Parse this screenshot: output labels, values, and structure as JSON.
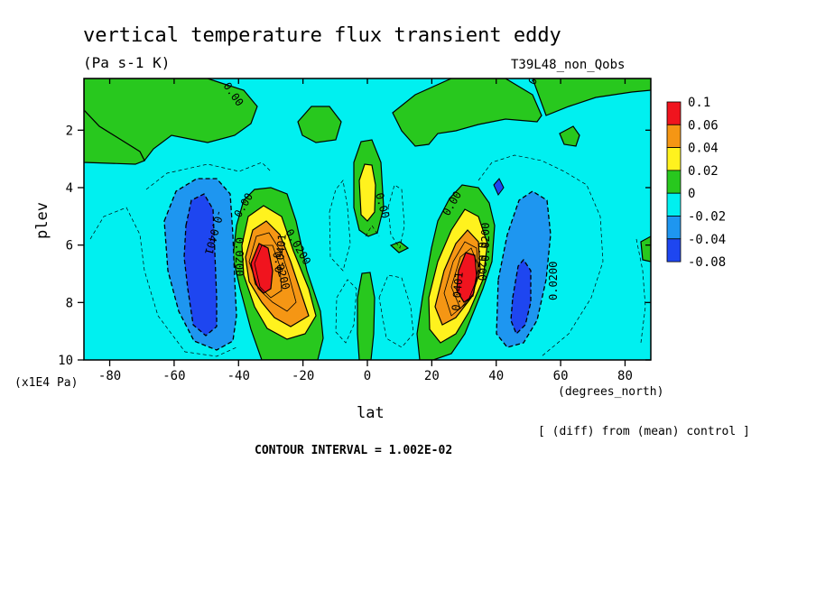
{
  "chart_data": {
    "type": "contour",
    "title": "vertical temperature flux transient eddy",
    "units": "(Pa s-1 K)",
    "run_label": "T39L48_non_Qobs",
    "xlabel": "lat",
    "xlabel_units": "(degrees_north)",
    "ylabel": "plev",
    "ylabel_units": "(x1E4 Pa)",
    "xlim": [
      -88,
      88
    ],
    "ylim": [
      10,
      0.2
    ],
    "x_ticks": [
      "-80",
      "-60",
      "-40",
      "-20",
      "0",
      "20",
      "40",
      "60",
      "80"
    ],
    "y_ticks": [
      "2",
      "4",
      "6",
      "8",
      "10"
    ],
    "note": "[ (diff) from (mean) control ]",
    "contour_interval": "CONTOUR INTERVAL = 1.002E-02",
    "colorbar": {
      "labels": [
        "0.1",
        "0.06",
        "0.04",
        "0.02",
        "0",
        "-0.02",
        "-0.04",
        "-0.08"
      ],
      "colors": [
        "#f0141e",
        "#f59614",
        "#fff21e",
        "#28c81e",
        "#00f0f0",
        "#1e96f0",
        "#1e46f0"
      ]
    },
    "contour_labels": [
      "0.00",
      "0.00",
      "0.00",
      "0.00",
      "0.0200",
      "0.0200",
      "0.0200",
      "0.00",
      "-0.0401",
      "0.0200",
      "0.0401",
      "0.0401",
      "0.0200",
      "0.0200"
    ],
    "features": [
      {
        "lat": -33,
        "plev": 6.8,
        "value": 0.1,
        "sign": "positive"
      },
      {
        "lat": 31,
        "plev": 6.9,
        "value": 0.1,
        "sign": "positive"
      },
      {
        "lat": -50,
        "plev": 7.2,
        "value": -0.06,
        "sign": "negative"
      },
      {
        "lat": 48,
        "plev": 7.3,
        "value": -0.06,
        "sign": "negative"
      },
      {
        "lat": 0,
        "plev": 4.2,
        "value": 0.03,
        "sign": "positive"
      }
    ]
  }
}
